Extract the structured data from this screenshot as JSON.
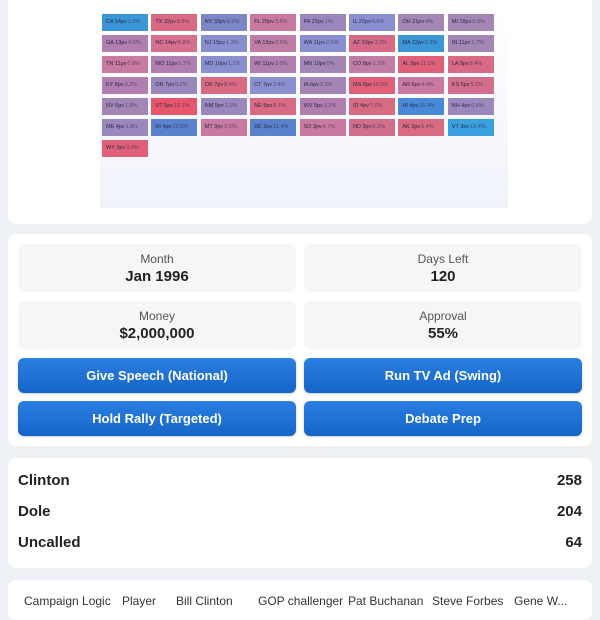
{
  "states": [
    {
      "label": "CA 54pv",
      "margin": "1.2%",
      "color": "#3a96d6"
    },
    {
      "label": "TX 32pv",
      "margin": "8.8%",
      "color": "#d96a84"
    },
    {
      "label": "NY 33pv",
      "margin": "4.3%",
      "color": "#7c86c6"
    },
    {
      "label": "FL 25pv",
      "margin": "3.6%",
      "color": "#c87aa0"
    },
    {
      "label": "PA 23pv",
      "margin": "1%",
      "color": "#9a88bd"
    },
    {
      "label": "IL 22pv",
      "margin": "6.6%",
      "color": "#8a8fd0"
    },
    {
      "label": "OH 21pv",
      "margin": "4%",
      "color": "#a486b6"
    },
    {
      "label": "MI 18pv",
      "margin": "0.9%",
      "color": "#a486b6"
    },
    {
      "label": "GA 13pv",
      "margin": "4.6%",
      "color": "#b07fb0"
    },
    {
      "label": "NC 14pv",
      "margin": "6.8%",
      "color": "#d6708e"
    },
    {
      "label": "NJ 15pv",
      "margin": "1.3%",
      "color": "#8a8fd0"
    },
    {
      "label": "VA 13pv",
      "margin": "0.6%",
      "color": "#c07da6"
    },
    {
      "label": "WA 11pv",
      "margin": "2.5%",
      "color": "#8a8fd0"
    },
    {
      "label": "AZ 10pv",
      "margin": "3.3%",
      "color": "#d66a88"
    },
    {
      "label": "MA 12pv",
      "margin": "0.2%",
      "color": "#3a96d6"
    },
    {
      "label": "IN 11pv",
      "margin": "1.7%",
      "color": "#a486b6"
    },
    {
      "label": "TN 11pv",
      "margin": "0.8%",
      "color": "#c87aa0"
    },
    {
      "label": "MO 11pv",
      "margin": "1.7%",
      "color": "#b07fb0"
    },
    {
      "label": "MD 10pv",
      "margin": "1.1%",
      "color": "#8a8fd0"
    },
    {
      "label": "WI 11pv",
      "margin": "2.0%",
      "color": "#b07fb0"
    },
    {
      "label": "MN 10pv",
      "margin": "0%",
      "color": "#a486b6"
    },
    {
      "label": "CO 8pv",
      "margin": "1.1%",
      "color": "#c07da6"
    },
    {
      "label": "AL 9pv",
      "margin": "11.1%",
      "color": "#e0607a"
    },
    {
      "label": "LA 9pv",
      "margin": "8.4%",
      "color": "#d96a84"
    },
    {
      "label": "KY 8pv",
      "margin": "3.2%",
      "color": "#b07fb0"
    },
    {
      "label": "OR 7pv",
      "margin": "0.2%",
      "color": "#9a88bd"
    },
    {
      "label": "OK 7pv",
      "margin": "8.4%",
      "color": "#d96a84"
    },
    {
      "label": "CT 7pv",
      "margin": "3.4%",
      "color": "#8a8fd0"
    },
    {
      "label": "IA 6pv",
      "margin": "3.3%",
      "color": "#a486b6"
    },
    {
      "label": "MS 6pv",
      "margin": "10.5%",
      "color": "#e0607a"
    },
    {
      "label": "AR 6pv",
      "margin": "4.4%",
      "color": "#c87aa0"
    },
    {
      "label": "KS 6pv",
      "margin": "5.1%",
      "color": "#d06e8c"
    },
    {
      "label": "NV 6pv",
      "margin": "1.9%",
      "color": "#a486b6"
    },
    {
      "label": "UT 5pv",
      "margin": "15.1%",
      "color": "#e8566e"
    },
    {
      "label": "NM 5pv",
      "margin": "1.1%",
      "color": "#9a88bd"
    },
    {
      "label": "NE 5pv",
      "margin": "8.1%",
      "color": "#d96a84"
    },
    {
      "label": "WV 5pv",
      "margin": "3.2%",
      "color": "#b07fb0"
    },
    {
      "label": "ID 4pv",
      "margin": "7.0%",
      "color": "#d96a84"
    },
    {
      "label": "HI 4pv",
      "margin": "16.4%",
      "color": "#4a88d8"
    },
    {
      "label": "NH 4pv",
      "margin": "0.6%",
      "color": "#9a88bd"
    },
    {
      "label": "ME 4pv",
      "margin": "1.8%",
      "color": "#9a88bd"
    },
    {
      "label": "RI 4pv",
      "margin": "13.5%",
      "color": "#5a80d0"
    },
    {
      "label": "MT 3pv",
      "margin": "3.5%",
      "color": "#c87aa0"
    },
    {
      "label": "DE 3pv",
      "margin": "11.4%",
      "color": "#5a80d0"
    },
    {
      "label": "SD 3pv",
      "margin": "4.7%",
      "color": "#c87aa0"
    },
    {
      "label": "ND 3pv",
      "margin": "6.3%",
      "color": "#d06e8c"
    },
    {
      "label": "AK 3pv",
      "margin": "6.4%",
      "color": "#d96a84"
    },
    {
      "label": "VT 3pv",
      "margin": "19.4%",
      "color": "#3aa0e0"
    },
    {
      "label": "WY 3pv",
      "margin": "3.3%",
      "color": "#e0607a"
    }
  ],
  "stats": {
    "month_label": "Month",
    "month_value": "Jan 1996",
    "days_label": "Days Left",
    "days_value": "120",
    "money_label": "Money",
    "money_value": "$2,000,000",
    "approval_label": "Approval",
    "approval_value": "55%"
  },
  "actions": {
    "speech": "Give Speech (National)",
    "tv_ad": "Run TV Ad (Swing)",
    "rally": "Hold Rally (Targeted)",
    "debate": "Debate Prep"
  },
  "tally": [
    {
      "name": "Clinton",
      "value": "258"
    },
    {
      "name": "Dole",
      "value": "204"
    },
    {
      "name": "Uncalled",
      "value": "64"
    }
  ],
  "candidates": [
    "Campaign Logic",
    "Player",
    "Bill Clinton",
    "GOP challenger",
    "Pat Buchanan",
    "Steve Forbes",
    "Gene W..."
  ]
}
